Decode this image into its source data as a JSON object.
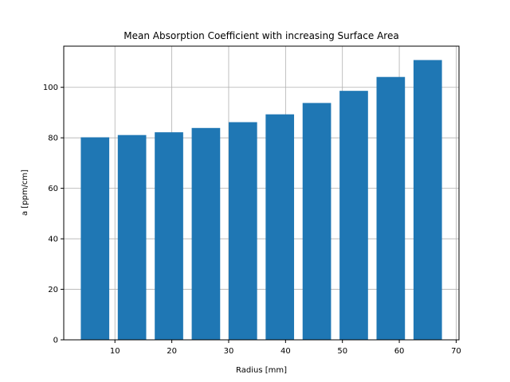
{
  "chart_data": {
    "type": "bar",
    "title": "Mean Absorption Coefficient with increasing Surface Area",
    "xlabel": "Radius [mm]",
    "ylabel": "a [ppm/cm]",
    "x": [
      6.5,
      13.0,
      19.5,
      26.0,
      32.5,
      39.0,
      45.5,
      52.0,
      58.5,
      65.0
    ],
    "values": [
      80.2,
      81.1,
      82.2,
      83.9,
      86.2,
      89.3,
      93.8,
      98.6,
      104.1,
      110.8
    ],
    "bar_width": 5,
    "xlim": [
      1.0,
      70.5
    ],
    "ylim": [
      0,
      116.3
    ],
    "xticks": [
      10,
      20,
      30,
      40,
      50,
      60,
      70
    ],
    "yticks": [
      0,
      20,
      40,
      60,
      80,
      100
    ],
    "grid": true,
    "bar_color": "#1f77b4"
  }
}
